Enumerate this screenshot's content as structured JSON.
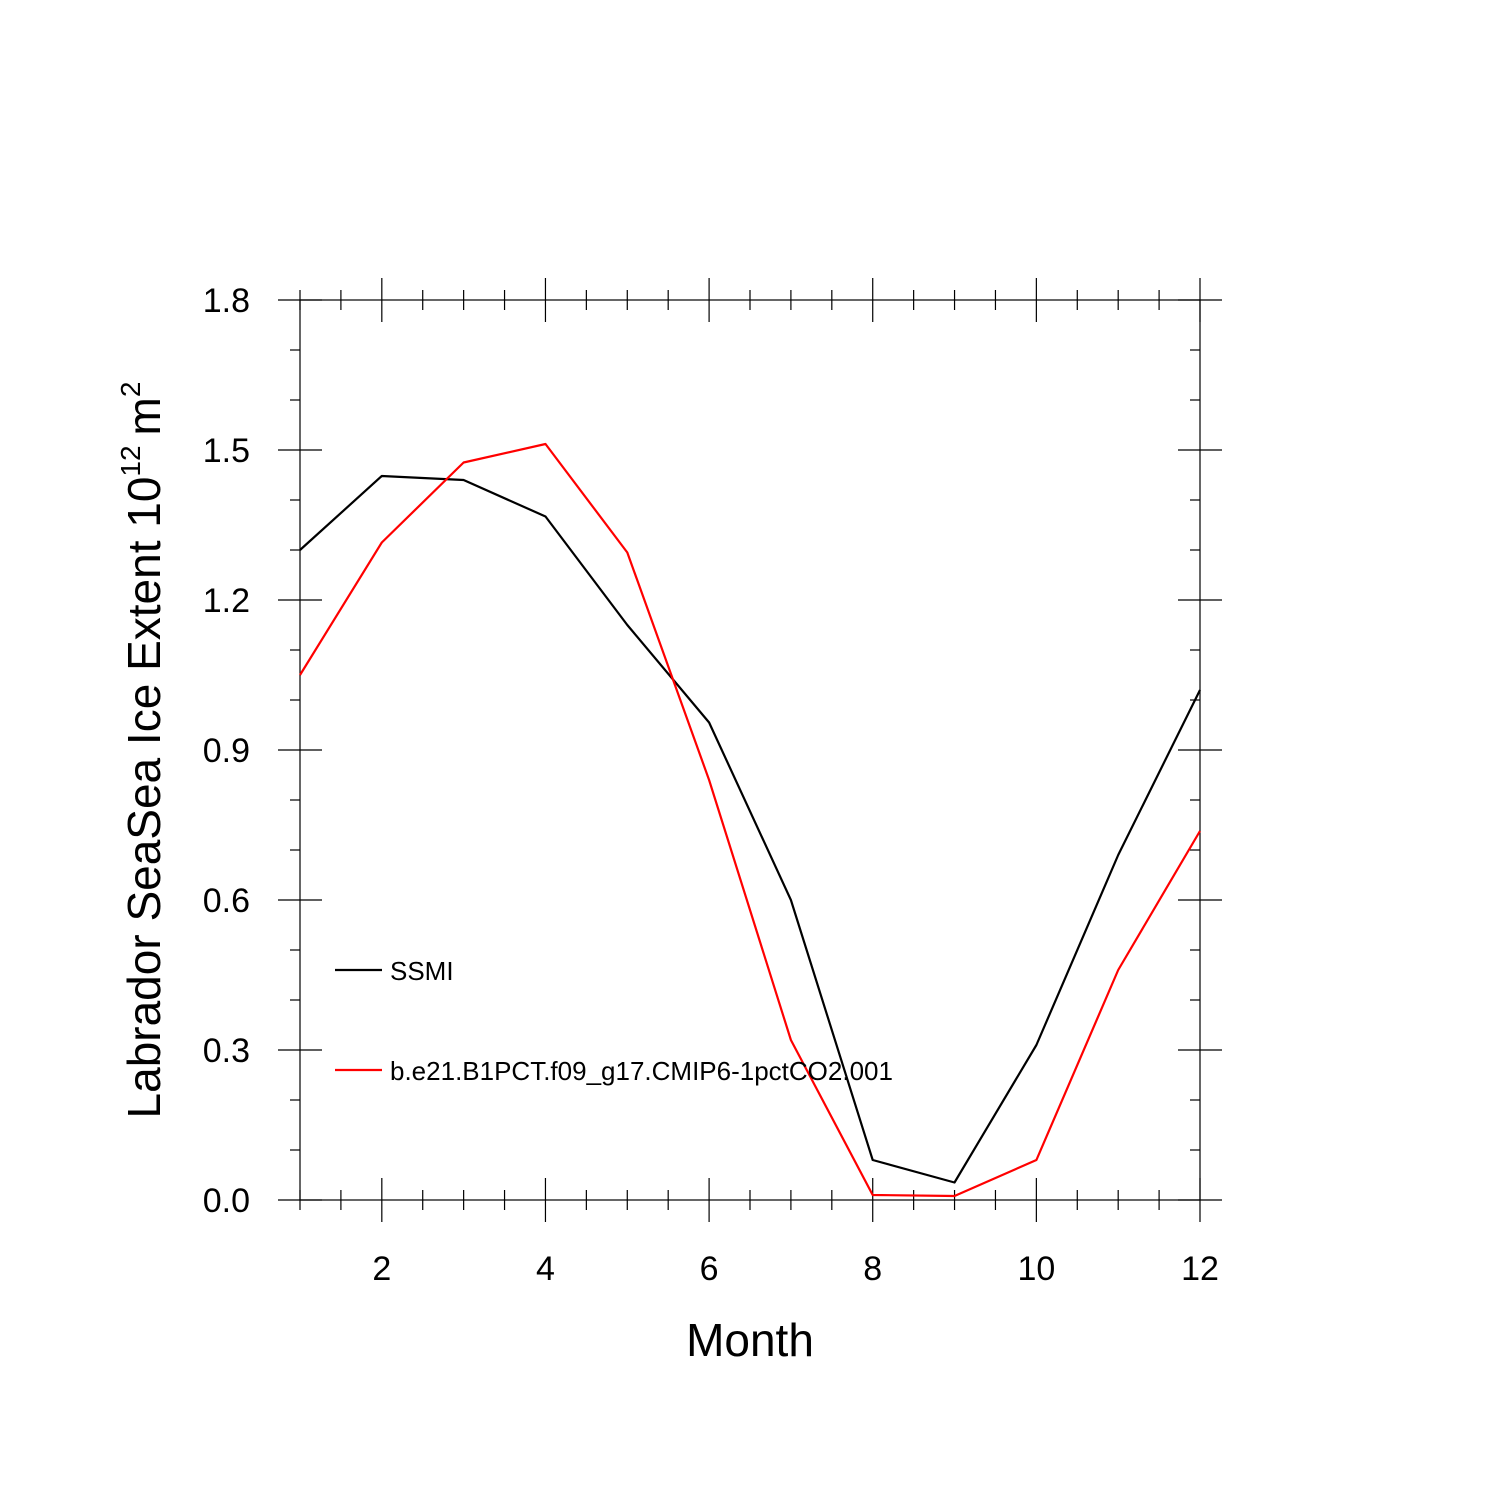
{
  "chart_data": {
    "type": "line",
    "title": "",
    "xlabel": "Month",
    "ylabel": "Labrador SeaSea Ice Extent 10",
    "ylabel_exponent": "12",
    "ylabel_unit": "m",
    "ylabel_unit_exponent": "2",
    "xlim": [
      1,
      12
    ],
    "ylim": [
      0.0,
      1.8
    ],
    "x_ticks": [
      2,
      4,
      6,
      8,
      10,
      12
    ],
    "x_tick_labels": [
      "2",
      "4",
      "6",
      "8",
      "10",
      "12"
    ],
    "y_ticks": [
      0.0,
      0.3,
      0.6,
      0.9,
      1.2,
      1.5,
      1.8
    ],
    "y_tick_labels": [
      "0.0",
      "0.3",
      "0.6",
      "0.9",
      "1.2",
      "1.5",
      "1.8"
    ],
    "x_minor_step": 0.5,
    "y_minor_step": 0.1,
    "grid": false,
    "legend_placement": "left",
    "x": [
      1,
      2,
      3,
      4,
      5,
      6,
      7,
      8,
      9,
      10,
      11,
      12
    ],
    "series": [
      {
        "name": "SSMI",
        "color": "#000000",
        "values": [
          1.3,
          1.448,
          1.44,
          1.367,
          1.15,
          0.955,
          0.6,
          0.08,
          0.035,
          0.31,
          0.69,
          1.02
        ]
      },
      {
        "name": "b.e21.B1PCT.f09_g17.CMIP6-1pctCO2.001",
        "color": "#ff0000",
        "values": [
          1.05,
          1.315,
          1.475,
          1.512,
          1.295,
          0.84,
          0.32,
          0.01,
          0.008,
          0.08,
          0.46,
          0.738
        ]
      }
    ]
  }
}
